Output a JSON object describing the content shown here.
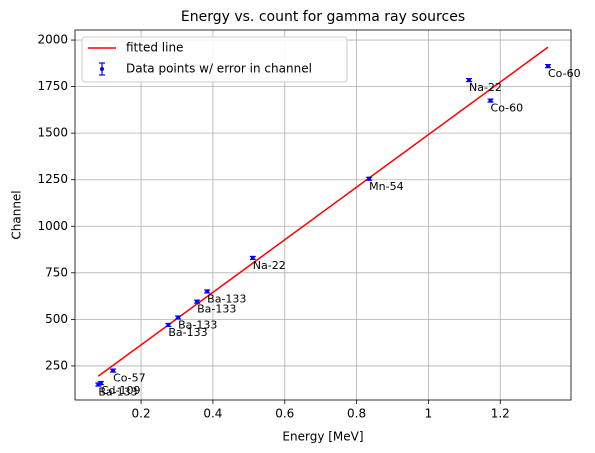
{
  "chart_data": {
    "type": "scatter",
    "title": "Energy vs. count for gamma ray sources",
    "x_label": "Energy [MeV]",
    "y_label": "Channel",
    "xlim": [
      0.016,
      1.397
    ],
    "ylim": [
      67,
      2054
    ],
    "xticks": [
      0.2,
      0.4,
      0.6,
      0.8,
      1.0,
      1.2
    ],
    "yticks": [
      250,
      500,
      750,
      1000,
      1250,
      1500,
      1750,
      2000
    ],
    "grid": true,
    "legend": "upper left",
    "series": [
      {
        "name": "fitted line",
        "type": "line",
        "color": "#ff0000",
        "x": [
          0.081,
          1.333
        ],
        "values": [
          195,
          1962
        ]
      },
      {
        "name": "Data points w/ error in channel",
        "type": "errorbar",
        "color": "#0000ff",
        "x": [
          0.081,
          0.088,
          0.122,
          0.276,
          0.303,
          0.356,
          0.384,
          0.511,
          0.835,
          1.113,
          1.173,
          1.333
        ],
        "values": [
          150,
          158,
          225,
          470,
          510,
          595,
          650,
          830,
          1255,
          1785,
          1675,
          1860
        ],
        "errors": [
          8,
          8,
          8,
          8,
          8,
          8,
          8,
          8,
          8,
          8,
          8,
          8
        ],
        "labels": [
          "Ba-133",
          "Cd-109",
          "Co-57",
          "Ba-133",
          "Ba-133",
          "Ba-133",
          "Ba-133",
          "Na-22",
          "Mn-54",
          "Na-22",
          "Co-60",
          "Co-60"
        ]
      }
    ]
  }
}
